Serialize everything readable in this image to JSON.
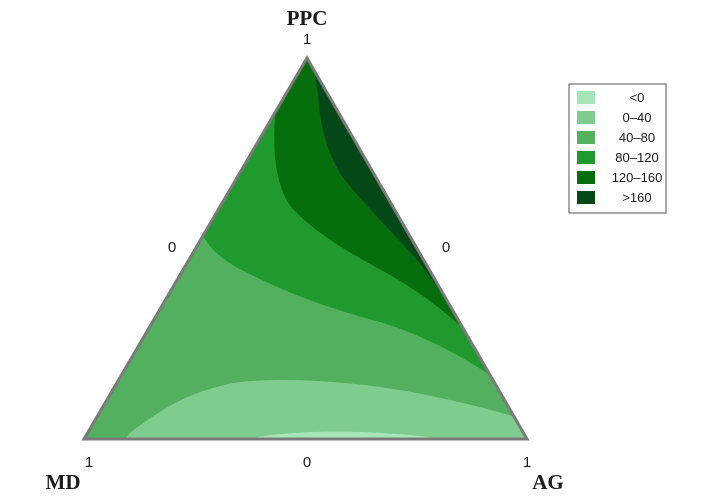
{
  "chart_data": {
    "type": "ternary-contour",
    "title": "",
    "vertices": {
      "top": {
        "name": "PPC",
        "tick": "1"
      },
      "left": {
        "name": "MD",
        "tick": "1"
      },
      "right": {
        "name": "AG",
        "tick": "1"
      }
    },
    "edge_ticks": {
      "left_edge": "0",
      "right_edge": "0",
      "bottom_edge": "0"
    },
    "legend": {
      "placement": "top-right",
      "entries": [
        {
          "label": "<0",
          "color": "#a6e5b8"
        },
        {
          "label": "0–40",
          "color": "#80cc8e"
        },
        {
          "label": "40–80",
          "color": "#52b05e"
        },
        {
          "label": "80–120",
          "color": "#209a2e"
        },
        {
          "label": "120–160",
          "color": "#066e0c"
        },
        {
          "label": ">160",
          "color": "#044818"
        }
      ]
    },
    "border_color": "#7a7a7a"
  }
}
